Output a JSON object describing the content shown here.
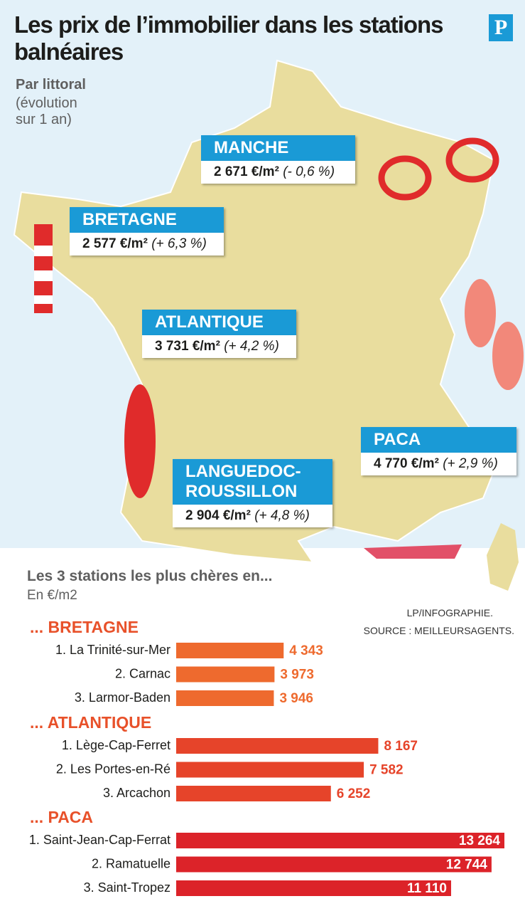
{
  "header": {
    "title": "Les prix de l’immobilier dans les stations balnéaires",
    "logo": "P",
    "subtitle": "Par littoral",
    "note": "(évolution sur 1 an)"
  },
  "regions": [
    {
      "name_lines": [
        "MANCHE"
      ],
      "price": "2 671 €/m²",
      "change": "(- 0,6 %)"
    },
    {
      "name_lines": [
        "BRETAGNE"
      ],
      "price": "2 577 €/m²",
      "change": "(+ 6,3 %)"
    },
    {
      "name_lines": [
        "ATLANTIQUE"
      ],
      "price": "3 731 €/m²",
      "change": "(+ 4,2 %)"
    },
    {
      "name_lines": [
        "LANGUEDOC-",
        "ROUSSILLON"
      ],
      "price": "2 904 €/m²",
      "change": "(+ 4,8 %)"
    },
    {
      "name_lines": [
        "PACA"
      ],
      "price": "4 770 €/m²",
      "change": "(+ 2,9 %)"
    }
  ],
  "chart_data": {
    "type": "bar",
    "title": "Les 3 stations les plus chères en...",
    "subtitle": "En €/m2",
    "credit": "LP/INFOGRAPHIE.",
    "source": "SOURCE : MEILLEURSAGENTS.",
    "groups": [
      {
        "name": "... BRETAGNE",
        "color": "#ee6a2e",
        "categories": [
          "1. La Trinité-sur-Mer",
          "2. Carnac",
          "3. Larmor-Baden"
        ],
        "values": [
          4343,
          3973,
          3946
        ],
        "value_labels": [
          "4 343",
          "3 973",
          "3 946"
        ]
      },
      {
        "name": "... ATLANTIQUE",
        "color": "#e6442a",
        "categories": [
          "1. Lège-Cap-Ferret",
          "2. Les Portes-en-Ré",
          "3. Arcachon"
        ],
        "values": [
          8167,
          7582,
          6252
        ],
        "value_labels": [
          "8 167",
          "7 582",
          "6 252"
        ]
      },
      {
        "name": "... PACA",
        "color": "#dc2329",
        "categories": [
          "1. Saint-Jean-Cap-Ferrat",
          "2. Ramatuelle",
          "3. Saint-Tropez"
        ],
        "values": [
          13264,
          12744,
          11110
        ],
        "value_labels": [
          "13 264",
          "12 744",
          "11 110"
        ]
      }
    ]
  }
}
